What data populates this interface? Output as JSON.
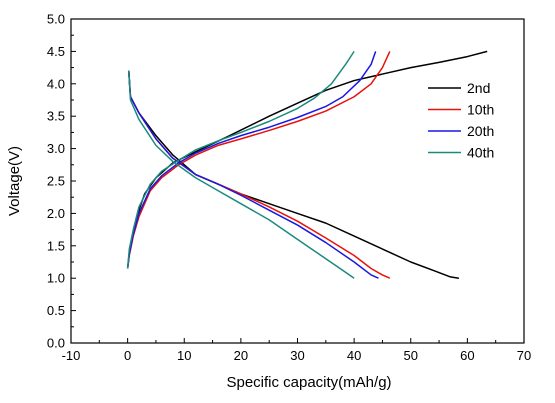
{
  "chart_data": {
    "type": "line",
    "title": "",
    "xlabel": "Specific capacity(mAh/g)",
    "ylabel": "Voltage(V)",
    "xlim": [
      -10,
      70
    ],
    "ylim": [
      0.0,
      5.0
    ],
    "xticks": [
      "-10",
      "0",
      "10",
      "20",
      "30",
      "40",
      "50",
      "60",
      "70"
    ],
    "yticks": [
      "0.0",
      "0.5",
      "1.0",
      "1.5",
      "2.0",
      "2.5",
      "3.0",
      "3.5",
      "4.0",
      "4.5",
      "5.0"
    ],
    "grid": false,
    "legend_position": "top-right",
    "series": [
      {
        "name": "2nd",
        "color": "#000000",
        "charge": [
          [
            0,
            1.15
          ],
          [
            0.3,
            1.4
          ],
          [
            1,
            1.7
          ],
          [
            2,
            2.05
          ],
          [
            3,
            2.3
          ],
          [
            5,
            2.55
          ],
          [
            8,
            2.78
          ],
          [
            12,
            2.95
          ],
          [
            18,
            3.2
          ],
          [
            25,
            3.5
          ],
          [
            30,
            3.7
          ],
          [
            35,
            3.9
          ],
          [
            40,
            4.05
          ],
          [
            45,
            4.15
          ],
          [
            50,
            4.25
          ],
          [
            55,
            4.33
          ],
          [
            60,
            4.42
          ],
          [
            63.5,
            4.5
          ]
        ],
        "discharge": [
          [
            0.2,
            4.2
          ],
          [
            0.5,
            3.8
          ],
          [
            2,
            3.55
          ],
          [
            5,
            3.2
          ],
          [
            8,
            2.9
          ],
          [
            12,
            2.6
          ],
          [
            16,
            2.45
          ],
          [
            20,
            2.3
          ],
          [
            25,
            2.15
          ],
          [
            30,
            2.0
          ],
          [
            35,
            1.85
          ],
          [
            40,
            1.65
          ],
          [
            45,
            1.45
          ],
          [
            50,
            1.25
          ],
          [
            54,
            1.12
          ],
          [
            57,
            1.02
          ],
          [
            58.5,
            1.0
          ]
        ]
      },
      {
        "name": "10th",
        "color": "#e8120c",
        "charge": [
          [
            0,
            1.15
          ],
          [
            0.3,
            1.35
          ],
          [
            1,
            1.65
          ],
          [
            2,
            1.95
          ],
          [
            4,
            2.35
          ],
          [
            6,
            2.55
          ],
          [
            9,
            2.75
          ],
          [
            12,
            2.9
          ],
          [
            16,
            3.05
          ],
          [
            20,
            3.15
          ],
          [
            25,
            3.28
          ],
          [
            30,
            3.42
          ],
          [
            35,
            3.58
          ],
          [
            40,
            3.8
          ],
          [
            43,
            4.0
          ],
          [
            45,
            4.25
          ],
          [
            46.3,
            4.5
          ]
        ],
        "discharge": [
          [
            0.2,
            4.2
          ],
          [
            0.5,
            3.8
          ],
          [
            2,
            3.55
          ],
          [
            5,
            3.15
          ],
          [
            8,
            2.85
          ],
          [
            12,
            2.6
          ],
          [
            16,
            2.45
          ],
          [
            20,
            2.3
          ],
          [
            25,
            2.1
          ],
          [
            30,
            1.88
          ],
          [
            35,
            1.62
          ],
          [
            40,
            1.35
          ],
          [
            43,
            1.15
          ],
          [
            45,
            1.05
          ],
          [
            46.3,
            1.0
          ]
        ]
      },
      {
        "name": "20th",
        "color": "#1a18e0",
        "charge": [
          [
            0,
            1.15
          ],
          [
            0.3,
            1.38
          ],
          [
            1,
            1.68
          ],
          [
            2,
            2.0
          ],
          [
            4,
            2.38
          ],
          [
            6,
            2.58
          ],
          [
            9,
            2.78
          ],
          [
            12,
            2.93
          ],
          [
            16,
            3.08
          ],
          [
            20,
            3.2
          ],
          [
            25,
            3.33
          ],
          [
            30,
            3.48
          ],
          [
            35,
            3.65
          ],
          [
            38,
            3.8
          ],
          [
            41,
            4.05
          ],
          [
            43,
            4.3
          ],
          [
            43.8,
            4.5
          ]
        ],
        "discharge": [
          [
            0.2,
            4.2
          ],
          [
            0.5,
            3.8
          ],
          [
            2,
            3.55
          ],
          [
            5,
            3.15
          ],
          [
            8,
            2.85
          ],
          [
            12,
            2.6
          ],
          [
            16,
            2.45
          ],
          [
            20,
            2.28
          ],
          [
            25,
            2.05
          ],
          [
            30,
            1.82
          ],
          [
            35,
            1.55
          ],
          [
            40,
            1.25
          ],
          [
            43,
            1.05
          ],
          [
            44.3,
            1.0
          ]
        ]
      },
      {
        "name": "40th",
        "color": "#1a8a7e",
        "charge": [
          [
            0,
            1.15
          ],
          [
            0.3,
            1.45
          ],
          [
            1,
            1.75
          ],
          [
            2,
            2.1
          ],
          [
            4,
            2.45
          ],
          [
            6,
            2.65
          ],
          [
            9,
            2.82
          ],
          [
            12,
            2.98
          ],
          [
            16,
            3.12
          ],
          [
            20,
            3.25
          ],
          [
            25,
            3.42
          ],
          [
            30,
            3.62
          ],
          [
            33,
            3.78
          ],
          [
            36,
            4.0
          ],
          [
            38.5,
            4.3
          ],
          [
            40,
            4.5
          ]
        ],
        "discharge": [
          [
            0.2,
            4.2
          ],
          [
            0.5,
            3.75
          ],
          [
            2,
            3.45
          ],
          [
            5,
            3.05
          ],
          [
            8,
            2.8
          ],
          [
            12,
            2.55
          ],
          [
            16,
            2.35
          ],
          [
            20,
            2.15
          ],
          [
            25,
            1.9
          ],
          [
            30,
            1.6
          ],
          [
            35,
            1.3
          ],
          [
            38,
            1.12
          ],
          [
            40,
            1.0
          ]
        ]
      }
    ]
  }
}
